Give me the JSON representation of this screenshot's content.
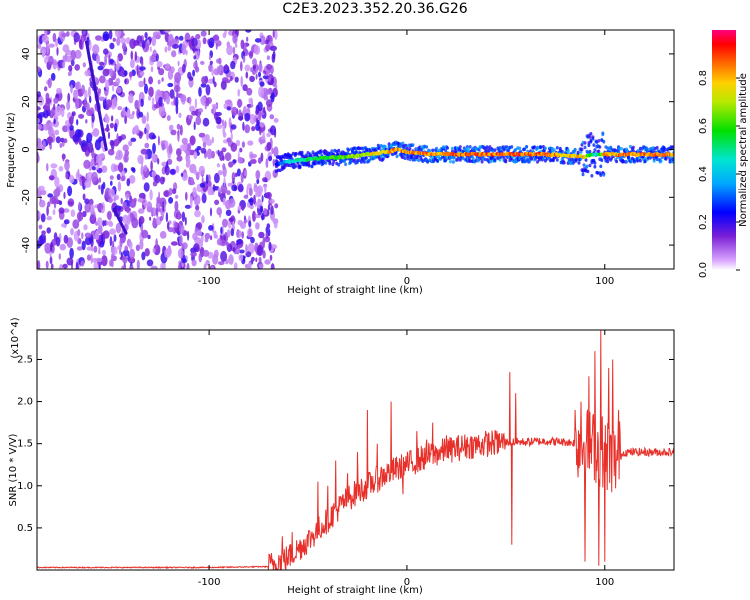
{
  "title": "C2E3.2023.352.20.36.G26",
  "colors": {
    "snr_line": "#e8302a",
    "spectrogram_noise": "#8a2be2",
    "axis": "#000000"
  },
  "colorbar": {
    "label": "Normalized spectral amplitude",
    "ticks": [
      "0.0",
      "0.2",
      "0.4",
      "0.6",
      "0.8"
    ],
    "tick_values": [
      0.0,
      0.2,
      0.4,
      0.6,
      0.8
    ],
    "range": [
      0.0,
      1.0
    ]
  },
  "chart_data": [
    {
      "type": "heatmap",
      "name": "spectrogram",
      "xlabel": "Height of straight line (km)",
      "ylabel": "Frequency (Hz)",
      "xlim": [
        -187,
        135
      ],
      "ylim": [
        -50,
        50
      ],
      "xticks": [
        -100,
        0,
        100
      ],
      "xtick_labels": [
        "-100",
        "0",
        "100"
      ],
      "yticks": [
        -40,
        -20,
        0,
        20,
        40
      ],
      "ytick_labels": [
        "-40",
        "-20",
        "0",
        "20",
        "40"
      ],
      "noise_region_x": [
        -187,
        -66
      ],
      "ridge": {
        "x": [
          -66,
          -60,
          -50,
          -40,
          -30,
          -20,
          -10,
          -5,
          0,
          10,
          30,
          50,
          70,
          90,
          95,
          100,
          110,
          135
        ],
        "y": [
          -6,
          -5,
          -4,
          -3.5,
          -3,
          -2,
          -1,
          0,
          -1,
          -2,
          -2,
          -2,
          -2,
          -3,
          -2,
          -2,
          -2,
          -2
        ],
        "amplitude": [
          0.25,
          0.45,
          0.55,
          0.6,
          0.65,
          0.75,
          0.85,
          0.9,
          0.85,
          0.9,
          0.9,
          0.9,
          0.9,
          0.8,
          0.45,
          0.85,
          0.9,
          0.85
        ]
      },
      "diagonal_streaks": [
        {
          "x": [
            -162,
            -152
          ],
          "y": [
            45,
            0
          ]
        },
        {
          "x": [
            -148,
            -142
          ],
          "y": [
            -25,
            -35
          ]
        }
      ]
    },
    {
      "type": "line",
      "name": "snr",
      "xlabel": "Height of straight line (km)",
      "ylabel": "SNR (10 * V/V)",
      "y_multiplier": "(x10^4)",
      "xlim": [
        -187,
        135
      ],
      "ylim": [
        0.0,
        2.85
      ],
      "xticks": [
        -100,
        0,
        100
      ],
      "xtick_labels": [
        "-100",
        "0",
        "100"
      ],
      "yticks": [
        0.5,
        1.0,
        1.5,
        2.0,
        2.5
      ],
      "ytick_labels": [
        "0.5",
        "1.0",
        "1.5",
        "2.0",
        "2.5"
      ],
      "baseline": {
        "x": [
          -187,
          -150,
          -100,
          -70
        ],
        "y": [
          0.03,
          0.03,
          0.03,
          0.04
        ]
      },
      "envelope": {
        "x": [
          -70,
          -60,
          -50,
          -40,
          -30,
          -20,
          -10,
          0,
          10,
          20,
          30,
          40,
          50,
          60,
          70,
          80,
          90,
          95,
          100,
          105,
          110,
          120,
          135
        ],
        "y": [
          0.05,
          0.15,
          0.35,
          0.6,
          0.85,
          1.0,
          1.15,
          1.25,
          1.35,
          1.42,
          1.47,
          1.5,
          1.52,
          1.52,
          1.53,
          1.52,
          1.5,
          1.45,
          1.4,
          1.3,
          1.4,
          1.4,
          1.4
        ]
      },
      "spikes": {
        "x": [
          -63,
          -58,
          -45,
          -40,
          -36,
          -30,
          -25,
          -20,
          -15,
          -8,
          -2,
          5,
          10,
          13,
          20,
          30,
          45,
          52,
          53,
          55,
          85,
          88,
          90,
          92,
          95,
          97,
          98,
          100,
          102,
          104,
          107
        ],
        "y": [
          0.4,
          0.45,
          1.05,
          1.0,
          1.3,
          1.15,
          1.4,
          1.9,
          1.5,
          2.0,
          0.9,
          1.65,
          1.55,
          1.75,
          1.6,
          1.55,
          1.55,
          2.35,
          0.3,
          2.1,
          1.9,
          2.0,
          0.1,
          2.3,
          2.6,
          0.05,
          2.85,
          0.1,
          2.4,
          2.5,
          1.9
        ]
      }
    }
  ]
}
